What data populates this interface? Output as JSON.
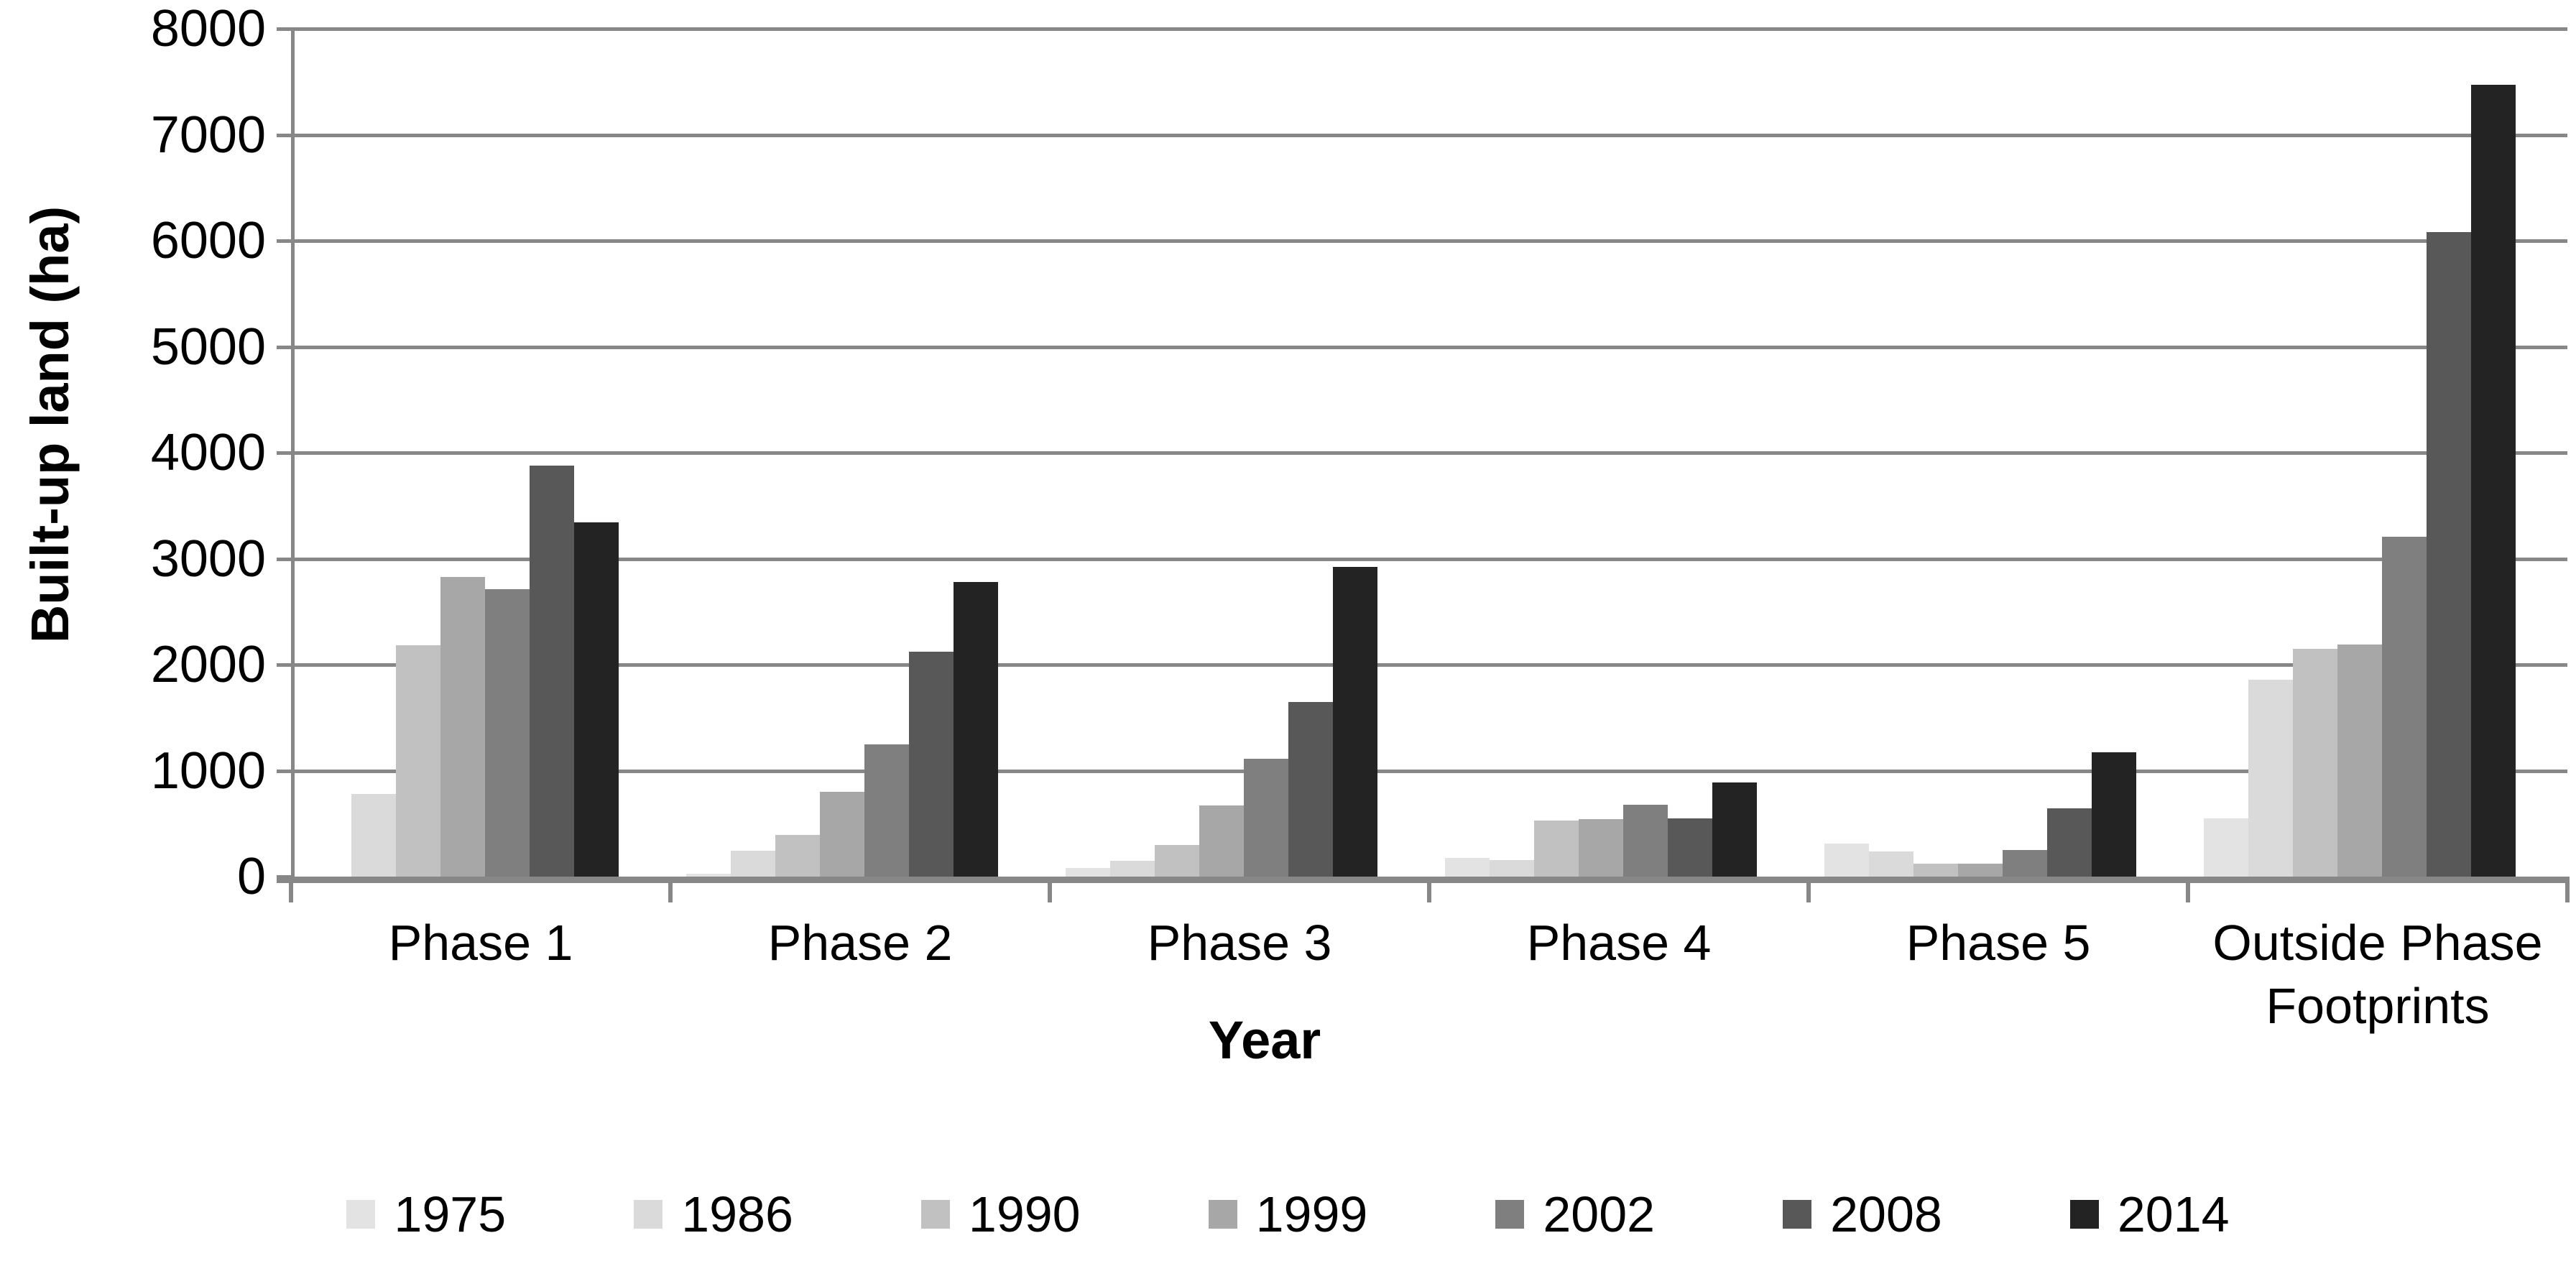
{
  "chart_data": {
    "type": "bar",
    "title": "",
    "xlabel": "Year",
    "ylabel": "Built-up land (ha)",
    "ylim": [
      0,
      8000
    ],
    "ytick_step": 1000,
    "yticks": [
      "0",
      "1000",
      "2000",
      "3000",
      "4000",
      "5000",
      "6000",
      "7000",
      "8000"
    ],
    "grid": true,
    "legend_position": "bottom",
    "axis_color": "#878787",
    "categories": [
      "Phase 1",
      "Phase 2",
      "Phase 3",
      "Phase 4",
      "Phase 5",
      "Outside Phase Footprints"
    ],
    "category_label_lines": [
      [
        "Phase 1"
      ],
      [
        "Phase 2"
      ],
      [
        "Phase 3"
      ],
      [
        "Phase 4"
      ],
      [
        "Phase 5"
      ],
      [
        "Outside Phase",
        "Footprints"
      ]
    ],
    "series": [
      {
        "name": "1975",
        "color": "#e3e3e3",
        "values": [
          0,
          25,
          80,
          175,
          310,
          550
        ]
      },
      {
        "name": "1986",
        "color": "#dadada",
        "values": [
          780,
          245,
          150,
          155,
          240,
          1860
        ]
      },
      {
        "name": "1990",
        "color": "#c1c1c1",
        "values": [
          2180,
          395,
          300,
          530,
          125,
          2150
        ]
      },
      {
        "name": "1999",
        "color": "#a7a7a7",
        "values": [
          2830,
          800,
          670,
          545,
          120,
          2190
        ]
      },
      {
        "name": "2002",
        "color": "#7f7f7f",
        "values": [
          2715,
          1250,
          1110,
          680,
          250,
          3210
        ]
      },
      {
        "name": "2008",
        "color": "#585858",
        "values": [
          3880,
          2120,
          1650,
          550,
          645,
          6080
        ]
      },
      {
        "name": "2014",
        "color": "#232323",
        "values": [
          3340,
          2780,
          2920,
          890,
          1170,
          7470
        ]
      }
    ]
  }
}
